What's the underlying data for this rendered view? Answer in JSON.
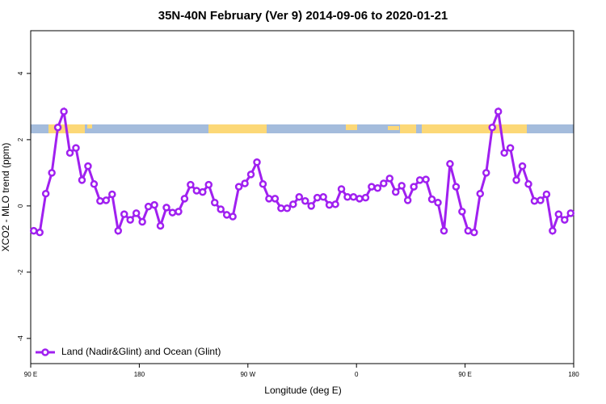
{
  "chart_data": {
    "type": "line",
    "title": "35N-40N February (Ver 9)   2014-09-06 to 2020-01-21",
    "x_label": "Longitude (deg E)",
    "y_label": "XCO2 - MLO trend (ppm)",
    "x": [
      92.5,
      97.5,
      102.5,
      107.5,
      112.5,
      117.5,
      122.5,
      127.5,
      132.5,
      137.5,
      142.5,
      147.5,
      152.5,
      157.5,
      162.5,
      167.5,
      172.5,
      177.5,
      182.5,
      187.5,
      192.5,
      197.5,
      202.5,
      207.5,
      212.5,
      217.5,
      222.5,
      227.5,
      232.5,
      237.5,
      242.5,
      247.5,
      252.5,
      257.5,
      262.5,
      267.5,
      272.5,
      277.5,
      282.5,
      287.5,
      292.5,
      297.5,
      302.5,
      307.5,
      312.5,
      317.5,
      322.5,
      327.5,
      332.5,
      337.5,
      342.5,
      347.5,
      352.5,
      357.5,
      362.5,
      367.5,
      372.5,
      377.5,
      382.5,
      387.5,
      392.5,
      397.5,
      402.5,
      407.5,
      412.5,
      417.5,
      422.5,
      427.5,
      432.5,
      437.5,
      442.5,
      447.5,
      452.5,
      457.5,
      462.5,
      467.5,
      472.5,
      477.5,
      482.5,
      487.5,
      492.5,
      497.5,
      502.5,
      507.5,
      512.5,
      517.5,
      522.5,
      527.5,
      532.5,
      537.5
    ],
    "series": [
      {
        "name": "Land (Nadir&Glint) and Ocean (Glint)",
        "color": "#a020f0",
        "values": [
          -0.75,
          -0.8,
          0.37,
          1.0,
          2.37,
          2.85,
          1.6,
          1.75,
          0.78,
          1.2,
          0.66,
          0.15,
          0.17,
          0.35,
          -0.75,
          -0.25,
          -0.42,
          -0.22,
          -0.48,
          -0.02,
          0.03,
          -0.6,
          -0.05,
          -0.2,
          -0.17,
          0.22,
          0.64,
          0.46,
          0.42,
          0.64,
          0.1,
          -0.1,
          -0.27,
          -0.32,
          0.58,
          0.68,
          0.95,
          1.32,
          0.66,
          0.22,
          0.22,
          -0.07,
          -0.07,
          0.05,
          0.27,
          0.15,
          0.0,
          0.25,
          0.27,
          0.03,
          0.05,
          0.51,
          0.27,
          0.27,
          0.22,
          0.25,
          0.58,
          0.54,
          0.68,
          0.83,
          0.42,
          0.61,
          0.17,
          0.58,
          0.78,
          0.8,
          0.2,
          0.1,
          -0.75,
          1.27,
          0.58,
          -0.17,
          -0.75,
          -0.8,
          0.37,
          1.0,
          2.37,
          2.85,
          1.6,
          1.75,
          0.78,
          1.2,
          0.66,
          0.15,
          0.17,
          0.35,
          -0.75,
          -0.25,
          -0.42,
          -0.22
        ]
      }
    ],
    "xlim": [
      90,
      540
    ],
    "xticks": [
      {
        "value": 90,
        "label": "90 E"
      },
      180,
      {
        "value": 270,
        "label": "90 W"
      },
      {
        "value": 360,
        "label": "0"
      },
      {
        "value": 450,
        "label": "90 E"
      },
      {
        "value": 540,
        "label": "180"
      }
    ],
    "ylim": [
      -4.76,
      5.29
    ],
    "yticks": [
      -4,
      -2,
      0,
      2,
      4
    ],
    "legend": "bottom-left"
  }
}
